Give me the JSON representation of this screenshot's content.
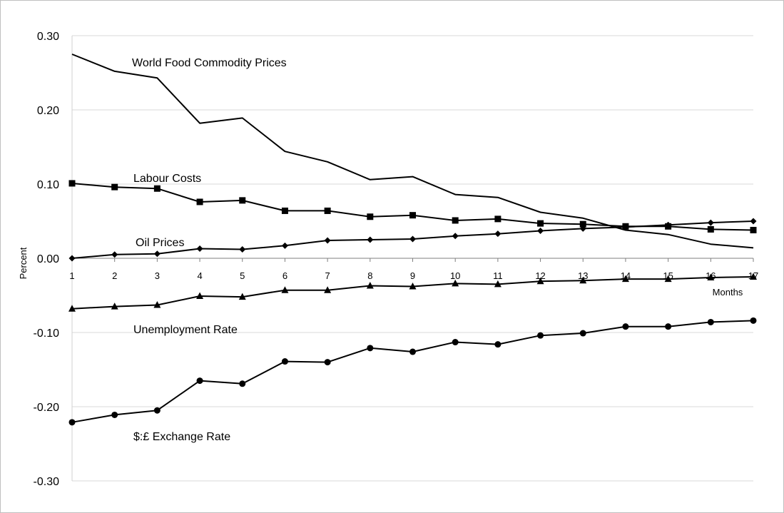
{
  "chart_data": {
    "type": "line",
    "title": "",
    "xlabel": "Months",
    "ylabel": "Percent",
    "x": [
      1,
      2,
      3,
      4,
      5,
      6,
      7,
      8,
      9,
      10,
      11,
      12,
      13,
      14,
      15,
      16,
      17
    ],
    "x_tick_labels": [
      "1",
      "2",
      "3",
      "4",
      "5",
      "6",
      "7",
      "8",
      "9",
      "10",
      "11",
      "12",
      "13",
      "14",
      "15",
      "16",
      "17"
    ],
    "y_tick_labels": [
      "0.30",
      "0.20",
      "0.10",
      "0.00",
      "-0.10",
      "-0.20",
      "-0.30"
    ],
    "ylim": [
      -0.3,
      0.3
    ],
    "grid": true,
    "legend": "none",
    "line_color": "#000000",
    "series": [
      {
        "name": "World Food Commodity Prices",
        "marker": "none",
        "values": [
          0.275,
          0.252,
          0.243,
          0.182,
          0.189,
          0.144,
          0.13,
          0.106,
          0.11,
          0.086,
          0.082,
          0.062,
          0.054,
          0.038,
          0.032,
          0.019,
          0.014
        ]
      },
      {
        "name": "Labour Costs",
        "marker": "square",
        "values": [
          0.101,
          0.096,
          0.094,
          0.076,
          0.078,
          0.064,
          0.064,
          0.056,
          0.058,
          0.051,
          0.053,
          0.047,
          0.046,
          0.043,
          0.043,
          0.039,
          0.038
        ]
      },
      {
        "name": "Oil Prices",
        "marker": "diamond",
        "values": [
          0.0,
          0.005,
          0.006,
          0.013,
          0.012,
          0.017,
          0.024,
          0.025,
          0.026,
          0.03,
          0.033,
          0.037,
          0.04,
          0.042,
          0.045,
          0.048,
          0.05
        ]
      },
      {
        "name": "Unemployment Rate",
        "marker": "triangle",
        "values": [
          -0.068,
          -0.065,
          -0.063,
          -0.051,
          -0.052,
          -0.043,
          -0.043,
          -0.037,
          -0.038,
          -0.034,
          -0.035,
          -0.031,
          -0.03,
          -0.028,
          -0.028,
          -0.026,
          -0.025
        ]
      },
      {
        "name": "$:£ Exchange Rate",
        "marker": "circle",
        "values": [
          -0.221,
          -0.211,
          -0.205,
          -0.165,
          -0.169,
          -0.139,
          -0.14,
          -0.121,
          -0.126,
          -0.113,
          -0.116,
          -0.104,
          -0.101,
          -0.092,
          -0.092,
          -0.086,
          -0.084
        ]
      }
    ]
  }
}
